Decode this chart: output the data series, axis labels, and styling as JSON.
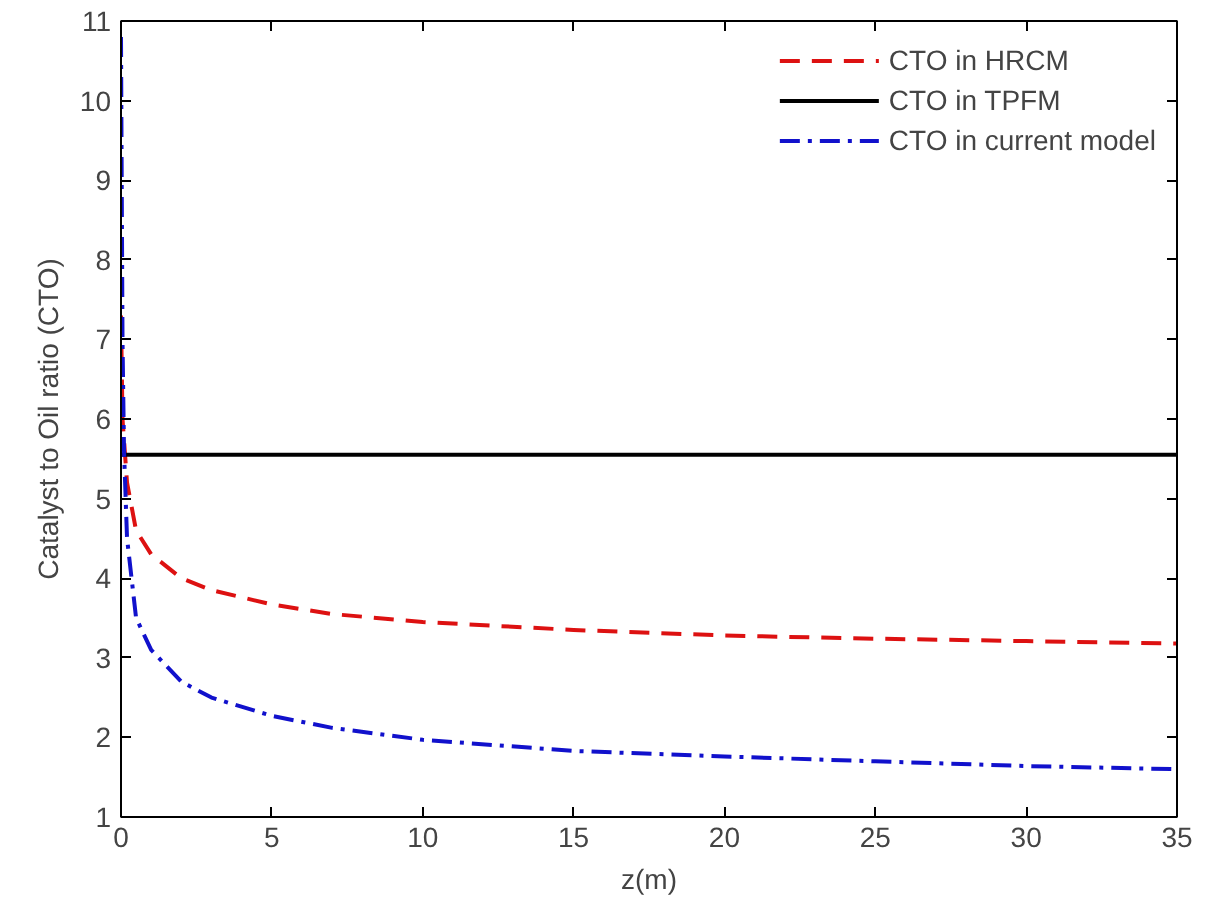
{
  "chart_data": {
    "type": "line",
    "xlabel": "z(m)",
    "ylabel": "Catalyst to Oil ratio (CTO)",
    "xlim": [
      0,
      35
    ],
    "ylim": [
      1,
      11
    ],
    "xticks": [
      0,
      5,
      10,
      15,
      20,
      25,
      30,
      35
    ],
    "yticks": [
      1,
      2,
      3,
      4,
      5,
      6,
      7,
      8,
      9,
      10,
      11
    ],
    "grid": false,
    "legend": "top right",
    "marker": "none",
    "series": [
      {
        "name": "CTO in HRCM",
        "color": "#dd1111",
        "line_style": "dashed",
        "x": [
          0,
          0.05,
          0.2,
          0.5,
          1,
          2,
          3,
          5,
          7,
          10,
          15,
          20,
          25,
          30,
          35
        ],
        "values": [
          7.3,
          6.0,
          5.2,
          4.6,
          4.3,
          4.0,
          3.85,
          3.67,
          3.55,
          3.45,
          3.35,
          3.28,
          3.24,
          3.21,
          3.18
        ]
      },
      {
        "name": "CTO in TPFM",
        "color": "#000000",
        "line_style": "solid",
        "x": [
          0,
          35
        ],
        "values": [
          5.55,
          5.55
        ]
      },
      {
        "name": "CTO in current model",
        "color": "#1111cc",
        "line_style": "dashdot",
        "x": [
          0,
          0.05,
          0.1,
          0.2,
          0.5,
          1,
          2,
          3,
          5,
          7,
          10,
          15,
          20,
          25,
          30,
          35
        ],
        "values": [
          10.8,
          7.0,
          5.6,
          4.5,
          3.5,
          3.1,
          2.7,
          2.5,
          2.27,
          2.12,
          1.97,
          1.83,
          1.76,
          1.7,
          1.64,
          1.6
        ]
      }
    ]
  }
}
